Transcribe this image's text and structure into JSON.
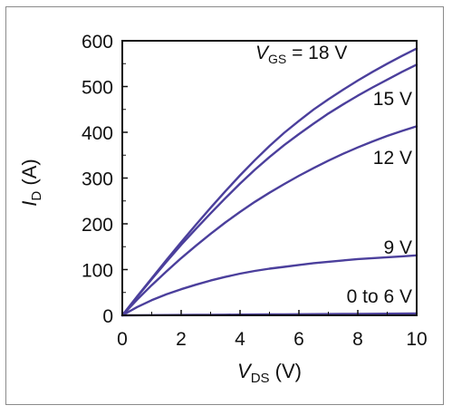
{
  "chart_data": {
    "type": "line",
    "xlabel": {
      "symbol": "V",
      "subscript": "DS",
      "unit": " (V)"
    },
    "ylabel": {
      "symbol": "I",
      "subscript": "D",
      "unit": " (A)"
    },
    "xlim": [
      0,
      10
    ],
    "ylim": [
      0,
      600
    ],
    "x_ticks": [
      "0",
      "2",
      "4",
      "6",
      "8",
      "10"
    ],
    "y_ticks": [
      "0",
      "100",
      "200",
      "300",
      "400",
      "500",
      "600"
    ],
    "grid": false,
    "line_color": "#4b3f9c",
    "x": [
      0,
      0.5,
      1,
      1.5,
      2,
      2.5,
      3,
      3.5,
      4,
      4.5,
      5,
      5.5,
      6,
      6.5,
      7,
      7.5,
      8,
      8.5,
      9,
      9.5,
      10
    ],
    "series": [
      {
        "name": "VGS = 18 V",
        "label": {
          "symbol": "V",
          "subscript": "GS",
          "text": " = 18 V"
        },
        "values": [
          0,
          41,
          81,
          121,
          160,
          198,
          235,
          271,
          306,
          339,
          370,
          399,
          425,
          450,
          472,
          493,
          513,
          532,
          550,
          567,
          583
        ]
      },
      {
        "name": "15 V",
        "label": {
          "symbol": "",
          "subscript": "",
          "text": "15 V"
        },
        "values": [
          0,
          40,
          79,
          117,
          154,
          189,
          223,
          256,
          288,
          318,
          346,
          372,
          396,
          419,
          441,
          461,
          480,
          498,
          515,
          532,
          548
        ]
      },
      {
        "name": "12 V",
        "label": {
          "symbol": "",
          "subscript": "",
          "text": "12 V"
        },
        "values": [
          0,
          34,
          66,
          96,
          125,
          152,
          178,
          203,
          226,
          248,
          268,
          287,
          305,
          322,
          338,
          353,
          367,
          380,
          392,
          403,
          413
        ]
      },
      {
        "name": "9 V",
        "label": {
          "symbol": "",
          "subscript": "",
          "text": "9 V"
        },
        "values": [
          0,
          18,
          33,
          46,
          57,
          67,
          76,
          84,
          91,
          97,
          102,
          106,
          110,
          114,
          117,
          120,
          123,
          125,
          127,
          129,
          131
        ]
      },
      {
        "name": "0 to 6 V",
        "label": {
          "symbol": "",
          "subscript": "",
          "text": "0 to 6 V"
        },
        "values": [
          0,
          0.2,
          0.4,
          0.6,
          0.8,
          1,
          1.2,
          1.4,
          1.6,
          1.8,
          2,
          2.2,
          2.4,
          2.6,
          2.8,
          3,
          3.2,
          3.4,
          3.6,
          3.8,
          4
        ]
      }
    ]
  }
}
